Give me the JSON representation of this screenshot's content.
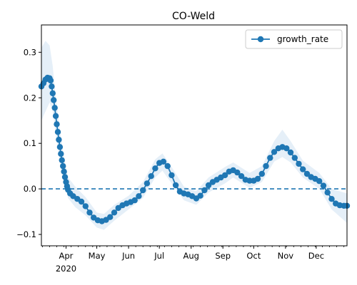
{
  "chart_data": {
    "type": "line",
    "title": "CO-Weld",
    "xlabel": "",
    "ylabel": "",
    "x_axis": {
      "type": "date",
      "range": [
        "2020-03-08",
        "2020-12-31"
      ],
      "tick_labels": [
        {
          "date": "2020-04-01",
          "label": "Apr",
          "sublabel": "2020"
        },
        {
          "date": "2020-05-01",
          "label": "May"
        },
        {
          "date": "2020-06-01",
          "label": "Jun"
        },
        {
          "date": "2020-07-01",
          "label": "Jul"
        },
        {
          "date": "2020-08-01",
          "label": "Aug"
        },
        {
          "date": "2020-09-01",
          "label": "Sep"
        },
        {
          "date": "2020-10-01",
          "label": "Oct"
        },
        {
          "date": "2020-11-01",
          "label": "Nov"
        },
        {
          "date": "2020-12-01",
          "label": "Dec"
        }
      ]
    },
    "y_axis": {
      "range": [
        -0.125,
        0.36
      ],
      "ticks": [
        -0.1,
        0.0,
        0.1,
        0.2,
        0.3
      ],
      "tick_labels": [
        "−0.1",
        "0.0",
        "0.1",
        "0.2",
        "0.3"
      ]
    },
    "grid": false,
    "legend": {
      "position": "top-right",
      "entries": [
        "growth_rate"
      ]
    },
    "reference_line": {
      "y": 0.0,
      "style": "dashed",
      "color": "#1f77b4"
    },
    "colors": {
      "series": "#1f77b4",
      "band": "#c6dcef"
    },
    "series": [
      {
        "name": "growth_rate",
        "marker": "circle",
        "points": [
          [
            "2020-03-08",
            0.225
          ],
          [
            "2020-03-10",
            0.232
          ],
          [
            "2020-03-12",
            0.24
          ],
          [
            "2020-03-14",
            0.244
          ],
          [
            "2020-03-16",
            0.243
          ],
          [
            "2020-03-17",
            0.238
          ],
          [
            "2020-03-18",
            0.225
          ],
          [
            "2020-03-19",
            0.21
          ],
          [
            "2020-03-20",
            0.195
          ],
          [
            "2020-03-21",
            0.178
          ],
          [
            "2020-03-22",
            0.16
          ],
          [
            "2020-03-23",
            0.142
          ],
          [
            "2020-03-24",
            0.125
          ],
          [
            "2020-03-25",
            0.108
          ],
          [
            "2020-03-26",
            0.092
          ],
          [
            "2020-03-27",
            0.077
          ],
          [
            "2020-03-28",
            0.063
          ],
          [
            "2020-03-29",
            0.05
          ],
          [
            "2020-03-30",
            0.038
          ],
          [
            "2020-03-31",
            0.026
          ],
          [
            "2020-04-01",
            0.015
          ],
          [
            "2020-04-02",
            0.006
          ],
          [
            "2020-04-03",
            -0.002
          ],
          [
            "2020-04-05",
            -0.01
          ],
          [
            "2020-04-08",
            -0.016
          ],
          [
            "2020-04-12",
            -0.022
          ],
          [
            "2020-04-16",
            -0.028
          ],
          [
            "2020-04-20",
            -0.038
          ],
          [
            "2020-04-24",
            -0.052
          ],
          [
            "2020-04-28",
            -0.063
          ],
          [
            "2020-05-02",
            -0.069
          ],
          [
            "2020-05-06",
            -0.071
          ],
          [
            "2020-05-10",
            -0.068
          ],
          [
            "2020-05-14",
            -0.062
          ],
          [
            "2020-05-18",
            -0.052
          ],
          [
            "2020-05-22",
            -0.042
          ],
          [
            "2020-05-26",
            -0.036
          ],
          [
            "2020-05-30",
            -0.032
          ],
          [
            "2020-06-03",
            -0.029
          ],
          [
            "2020-06-07",
            -0.025
          ],
          [
            "2020-06-11",
            -0.016
          ],
          [
            "2020-06-15",
            -0.003
          ],
          [
            "2020-06-19",
            0.012
          ],
          [
            "2020-06-23",
            0.028
          ],
          [
            "2020-06-27",
            0.045
          ],
          [
            "2020-07-01",
            0.057
          ],
          [
            "2020-07-05",
            0.06
          ],
          [
            "2020-07-09",
            0.05
          ],
          [
            "2020-07-13",
            0.03
          ],
          [
            "2020-07-17",
            0.008
          ],
          [
            "2020-07-21",
            -0.006
          ],
          [
            "2020-07-25",
            -0.01
          ],
          [
            "2020-07-29",
            -0.012
          ],
          [
            "2020-08-02",
            -0.016
          ],
          [
            "2020-08-06",
            -0.021
          ],
          [
            "2020-08-10",
            -0.015
          ],
          [
            "2020-08-14",
            -0.003
          ],
          [
            "2020-08-18",
            0.008
          ],
          [
            "2020-08-22",
            0.015
          ],
          [
            "2020-08-26",
            0.02
          ],
          [
            "2020-08-30",
            0.025
          ],
          [
            "2020-09-03",
            0.03
          ],
          [
            "2020-09-07",
            0.038
          ],
          [
            "2020-09-11",
            0.041
          ],
          [
            "2020-09-15",
            0.036
          ],
          [
            "2020-09-19",
            0.028
          ],
          [
            "2020-09-23",
            0.02
          ],
          [
            "2020-09-27",
            0.018
          ],
          [
            "2020-10-01",
            0.018
          ],
          [
            "2020-10-05",
            0.022
          ],
          [
            "2020-10-09",
            0.033
          ],
          [
            "2020-10-13",
            0.05
          ],
          [
            "2020-10-17",
            0.068
          ],
          [
            "2020-10-21",
            0.081
          ],
          [
            "2020-10-25",
            0.089
          ],
          [
            "2020-10-29",
            0.092
          ],
          [
            "2020-11-02",
            0.089
          ],
          [
            "2020-11-06",
            0.08
          ],
          [
            "2020-11-10",
            0.068
          ],
          [
            "2020-11-14",
            0.055
          ],
          [
            "2020-11-18",
            0.043
          ],
          [
            "2020-11-22",
            0.033
          ],
          [
            "2020-11-26",
            0.026
          ],
          [
            "2020-11-30",
            0.022
          ],
          [
            "2020-12-04",
            0.017
          ],
          [
            "2020-12-08",
            0.007
          ],
          [
            "2020-12-12",
            -0.008
          ],
          [
            "2020-12-16",
            -0.022
          ],
          [
            "2020-12-20",
            -0.032
          ],
          [
            "2020-12-24",
            -0.036
          ],
          [
            "2020-12-28",
            -0.037
          ],
          [
            "2020-12-31",
            -0.037
          ]
        ],
        "band": [
          [
            "2020-03-08",
            0.15,
            0.31
          ],
          [
            "2020-03-12",
            0.17,
            0.325
          ],
          [
            "2020-03-16",
            0.19,
            0.315
          ],
          [
            "2020-03-19",
            0.17,
            0.27
          ],
          [
            "2020-03-22",
            0.12,
            0.2
          ],
          [
            "2020-03-26",
            0.06,
            0.13
          ],
          [
            "2020-03-30",
            0.015,
            0.07
          ],
          [
            "2020-04-03",
            -0.02,
            0.025
          ],
          [
            "2020-04-10",
            -0.04,
            0.005
          ],
          [
            "2020-04-20",
            -0.058,
            -0.018
          ],
          [
            "2020-05-01",
            -0.085,
            -0.052
          ],
          [
            "2020-05-08",
            -0.09,
            -0.055
          ],
          [
            "2020-05-18",
            -0.07,
            -0.035
          ],
          [
            "2020-06-01",
            -0.045,
            -0.015
          ],
          [
            "2020-06-15",
            -0.02,
            0.015
          ],
          [
            "2020-06-27",
            0.025,
            0.065
          ],
          [
            "2020-07-04",
            0.04,
            0.078
          ],
          [
            "2020-07-13",
            0.012,
            0.048
          ],
          [
            "2020-07-25",
            -0.025,
            0.005
          ],
          [
            "2020-08-06",
            -0.035,
            -0.005
          ],
          [
            "2020-08-18",
            -0.008,
            0.025
          ],
          [
            "2020-09-03",
            0.012,
            0.048
          ],
          [
            "2020-09-11",
            0.025,
            0.058
          ],
          [
            "2020-09-27",
            0.002,
            0.035
          ],
          [
            "2020-10-09",
            0.015,
            0.05
          ],
          [
            "2020-10-21",
            0.06,
            0.105
          ],
          [
            "2020-10-29",
            0.07,
            0.13
          ],
          [
            "2020-11-06",
            0.058,
            0.105
          ],
          [
            "2020-11-18",
            0.025,
            0.062
          ],
          [
            "2020-12-04",
            0.0,
            0.035
          ],
          [
            "2020-12-16",
            -0.045,
            0.0
          ],
          [
            "2020-12-31",
            -0.075,
            -0.01
          ]
        ]
      }
    ]
  }
}
